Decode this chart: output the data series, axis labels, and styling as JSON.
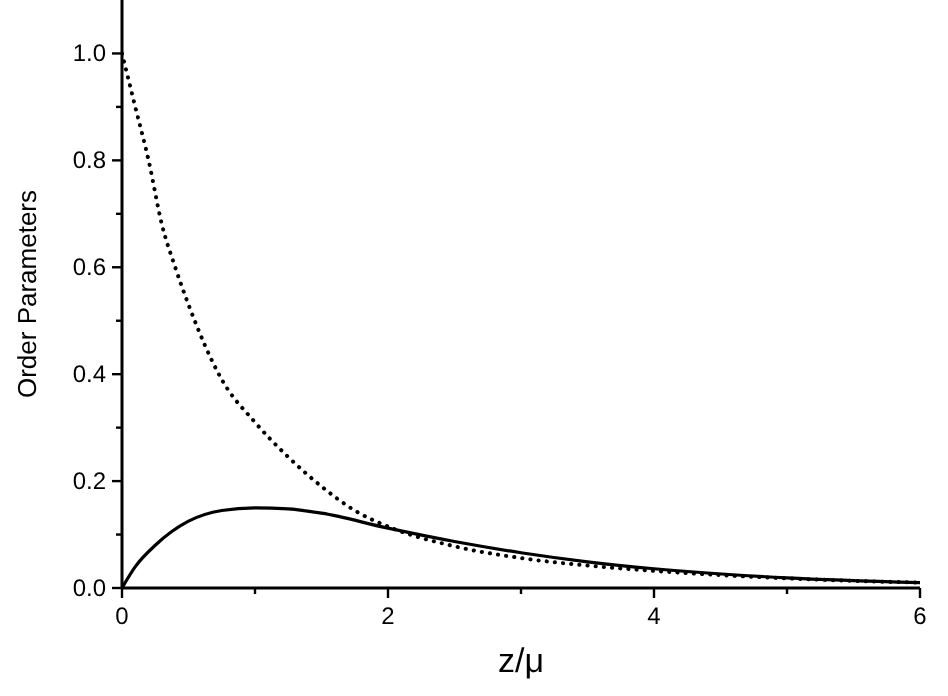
{
  "chart_data": {
    "type": "line",
    "xlabel": "z/μ",
    "ylabel": "Order Parameters",
    "xlim": [
      0,
      6
    ],
    "ylim": [
      0,
      1.1
    ],
    "xticks": [
      0,
      {
        "value": 1,
        "label": null
      },
      2,
      {
        "value": 3,
        "label": null
      },
      4,
      {
        "value": 5,
        "label": null
      },
      6
    ],
    "yticks": [
      {
        "value": 0,
        "label": "0.0"
      },
      {
        "value": 0.1,
        "label": null
      },
      {
        "value": 0.2,
        "label": "0.2"
      },
      {
        "value": 0.3,
        "label": null
      },
      {
        "value": 0.4,
        "label": "0.4"
      },
      {
        "value": 0.5,
        "label": null
      },
      {
        "value": 0.6,
        "label": "0.6"
      },
      {
        "value": 0.7,
        "label": null
      },
      {
        "value": 0.8,
        "label": "0.8"
      },
      {
        "value": 0.9,
        "label": null
      },
      {
        "value": 1,
        "label": "1.0"
      }
    ],
    "grid": false,
    "series": [
      {
        "color": "#000000",
        "line_style": "dotted",
        "x": [
          0,
          0.1,
          0.2,
          0.3,
          0.4,
          0.5,
          0.75,
          1,
          1.25,
          1.5,
          1.75,
          2,
          2.5,
          3,
          3.5,
          4,
          5,
          6
        ],
        "values": [
          1.0,
          0.9,
          0.8,
          0.68,
          0.6,
          0.53,
          0.39,
          0.31,
          0.245,
          0.19,
          0.145,
          0.115,
          0.078,
          0.056,
          0.042,
          0.032,
          0.018,
          0.01
        ]
      },
      {
        "color": "#000000",
        "line_style": "solid",
        "x": [
          0,
          0.1,
          0.25,
          0.5,
          0.75,
          1,
          1.25,
          1.5,
          2,
          2.5,
          3,
          3.5,
          4,
          5,
          6
        ],
        "values": [
          0,
          0.04,
          0.08,
          0.125,
          0.145,
          0.15,
          0.148,
          0.14,
          0.112,
          0.087,
          0.066,
          0.049,
          0.036,
          0.019,
          0.01
        ]
      }
    ]
  }
}
